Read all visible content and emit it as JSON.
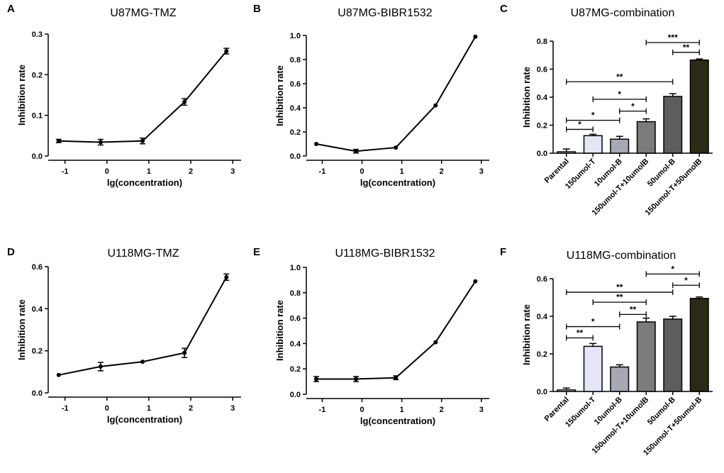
{
  "figure": {
    "panels": [
      {
        "key": "A",
        "label": "A",
        "title": "U87MG-TMZ"
      },
      {
        "key": "B",
        "label": "B",
        "title": "U87MG-BIBR1532"
      },
      {
        "key": "C",
        "label": "C",
        "title": "U87MG-combination"
      },
      {
        "key": "D",
        "label": "D",
        "title": "U118MG-TMZ"
      },
      {
        "key": "E",
        "label": "E",
        "title": "U118MG-BIBR1532"
      },
      {
        "key": "F",
        "label": "F",
        "title": "U118MG-combination"
      }
    ]
  },
  "colors": {
    "line": "#000000",
    "bars": [
      "#ffffff",
      "#e6e6f8",
      "#a8a8b2",
      "#7b7b7b",
      "#5d5d5d",
      "#2b2a14"
    ]
  },
  "chart_data": [
    {
      "panel": "A",
      "type": "line",
      "title": "U87MG-TMZ",
      "xlabel": "lg(concentration)",
      "ylabel": "Inhibition rate",
      "xlim": [
        -1.4,
        3.2
      ],
      "xticks": [
        -1,
        0,
        1,
        2,
        3
      ],
      "ylim": [
        0,
        0.3
      ],
      "yticks": [
        0.0,
        0.1,
        0.2,
        0.3
      ],
      "x": [
        -1.15,
        -0.15,
        0.85,
        1.85,
        2.85
      ],
      "y": [
        0.037,
        0.034,
        0.037,
        0.133,
        0.258
      ],
      "err": [
        0.004,
        0.007,
        0.007,
        0.008,
        0.007
      ]
    },
    {
      "panel": "B",
      "type": "line",
      "title": "U87MG-BIBR1532",
      "xlabel": "lg(concentration)",
      "ylabel": "Inhibition rate",
      "xlim": [
        -1.4,
        3.2
      ],
      "xticks": [
        -1,
        0,
        1,
        2,
        3
      ],
      "ylim": [
        0,
        1.0
      ],
      "yticks": [
        0.0,
        0.2,
        0.4,
        0.6,
        0.8,
        1.0
      ],
      "x": [
        -1.15,
        -0.15,
        0.85,
        1.85,
        2.85
      ],
      "y": [
        0.1,
        0.04,
        0.07,
        0.42,
        0.99
      ],
      "err": [
        0.0,
        0.015,
        0.0,
        0.0,
        0.0
      ]
    },
    {
      "panel": "C",
      "type": "bar",
      "title": "U87MG-combination",
      "xlabel": "",
      "ylabel": "Inhibition rate",
      "ylim": [
        0,
        0.8
      ],
      "yticks": [
        0.0,
        0.2,
        0.4,
        0.6,
        0.8
      ],
      "categories": [
        "Parental",
        "150umol-T",
        "10umol-B",
        "150umol-T+10umolB",
        "50umol-B",
        "150umol-T+50umolB"
      ],
      "values": [
        0.01,
        0.125,
        0.1,
        0.225,
        0.405,
        0.665
      ],
      "err": [
        0.02,
        0.01,
        0.02,
        0.02,
        0.02,
        0.008
      ],
      "significance": [
        {
          "from": 0,
          "to": 4,
          "label": "**",
          "y": 0.51
        },
        {
          "from": 0,
          "to": 2,
          "label": "*",
          "y": 0.235
        },
        {
          "from": 0,
          "to": 1,
          "label": "*",
          "y": 0.17
        },
        {
          "from": 1,
          "to": 3,
          "label": "*",
          "y": 0.385
        },
        {
          "from": 2,
          "to": 3,
          "label": "*",
          "y": 0.3
        },
        {
          "from": 3,
          "to": 5,
          "label": "***",
          "y": 0.79
        },
        {
          "from": 4,
          "to": 5,
          "label": "**",
          "y": 0.72
        }
      ]
    },
    {
      "panel": "D",
      "type": "line",
      "title": "U118MG-TMZ",
      "xlabel": "lg(concentration)",
      "ylabel": "Inhibition rate",
      "xlim": [
        -1.4,
        3.2
      ],
      "xticks": [
        -1,
        0,
        1,
        2,
        3
      ],
      "ylim": [
        0,
        0.6
      ],
      "yticks": [
        0.0,
        0.2,
        0.4,
        0.6
      ],
      "x": [
        -1.15,
        -0.15,
        0.85,
        1.85,
        2.85
      ],
      "y": [
        0.085,
        0.125,
        0.148,
        0.19,
        0.55
      ],
      "err": [
        0.0,
        0.02,
        0.0,
        0.022,
        0.015
      ]
    },
    {
      "panel": "E",
      "type": "line",
      "title": "U118MG-BIBR1532",
      "xlabel": "lg(concentration)",
      "ylabel": "Inhibition rate",
      "xlim": [
        -1.4,
        3.2
      ],
      "xticks": [
        -1,
        0,
        1,
        2,
        3
      ],
      "ylim": [
        0,
        1.0
      ],
      "yticks": [
        0.0,
        0.2,
        0.4,
        0.6,
        0.8,
        1.0
      ],
      "x": [
        -1.15,
        -0.15,
        0.85,
        1.85,
        2.85
      ],
      "y": [
        0.12,
        0.12,
        0.13,
        0.41,
        0.89
      ],
      "err": [
        0.02,
        0.02,
        0.015,
        0.0,
        0.0
      ]
    },
    {
      "panel": "F",
      "type": "bar",
      "title": "U118MG-combination",
      "xlabel": "",
      "ylabel": "Inhibition rate",
      "ylim": [
        0,
        0.6
      ],
      "yticks": [
        0.0,
        0.2,
        0.4,
        0.6
      ],
      "categories": [
        "Parental",
        "150umol-T",
        "10umol-B",
        "150umol-T+10umolB",
        "50umol-B",
        "150umol-T+50umol-B"
      ],
      "values": [
        0.008,
        0.24,
        0.13,
        0.37,
        0.385,
        0.495
      ],
      "err": [
        0.01,
        0.015,
        0.012,
        0.02,
        0.015,
        0.008
      ],
      "significance": [
        {
          "from": 0,
          "to": 4,
          "label": "**",
          "y": 0.528
        },
        {
          "from": 0,
          "to": 2,
          "label": "*",
          "y": 0.345
        },
        {
          "from": 0,
          "to": 1,
          "label": "**",
          "y": 0.285
        },
        {
          "from": 1,
          "to": 3,
          "label": "**",
          "y": 0.475
        },
        {
          "from": 2,
          "to": 3,
          "label": "**",
          "y": 0.41
        },
        {
          "from": 3,
          "to": 5,
          "label": "*",
          "y": 0.625
        },
        {
          "from": 4,
          "to": 5,
          "label": "*",
          "y": 0.565
        }
      ]
    }
  ]
}
